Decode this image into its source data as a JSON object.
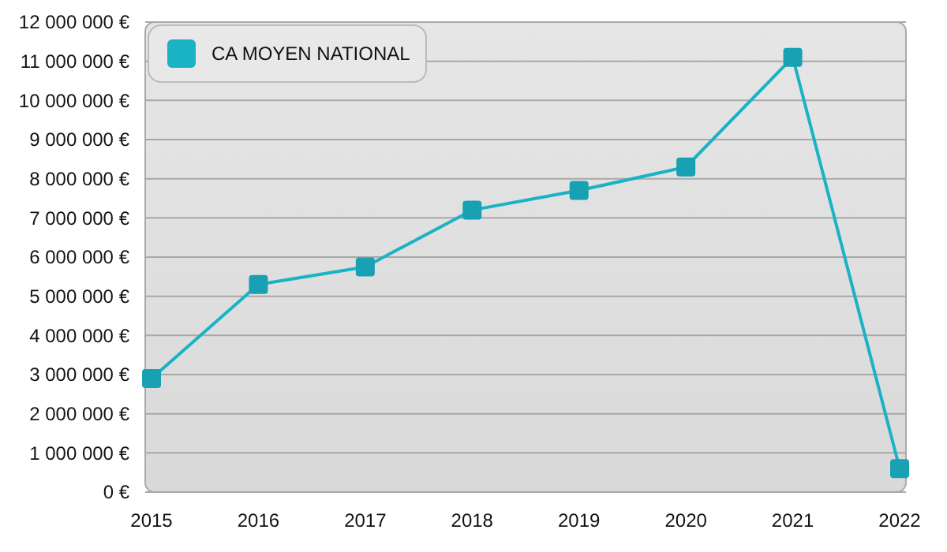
{
  "chart_data": {
    "type": "line",
    "categories": [
      "2015",
      "2016",
      "2017",
      "2018",
      "2019",
      "2020",
      "2021",
      "2022"
    ],
    "series": [
      {
        "name": "CA MOYEN NATIONAL",
        "color": "#1ab3c6",
        "values": [
          2900000,
          5300000,
          5750000,
          7200000,
          7700000,
          8300000,
          11100000,
          600000
        ]
      }
    ],
    "ylim": [
      0,
      12000000
    ],
    "yticks": [
      {
        "value": 0,
        "label": "0 €"
      },
      {
        "value": 1000000,
        "label": "1 000 000 €"
      },
      {
        "value": 2000000,
        "label": "2 000 000 €"
      },
      {
        "value": 3000000,
        "label": "3 000 000 €"
      },
      {
        "value": 4000000,
        "label": "4 000 000 €"
      },
      {
        "value": 5000000,
        "label": "5 000 000 €"
      },
      {
        "value": 6000000,
        "label": "6 000 000 €"
      },
      {
        "value": 7000000,
        "label": "7 000 000 €"
      },
      {
        "value": 8000000,
        "label": "8 000 000 €"
      },
      {
        "value": 9000000,
        "label": "9 000 000 €"
      },
      {
        "value": 10000000,
        "label": "10 000 000 €"
      },
      {
        "value": 11000000,
        "label": "11 000 000 €"
      },
      {
        "value": 12000000,
        "label": "12 000 000 €"
      }
    ],
    "grid": "y",
    "legend": "top left",
    "marker": "square",
    "line_style": "solid"
  }
}
